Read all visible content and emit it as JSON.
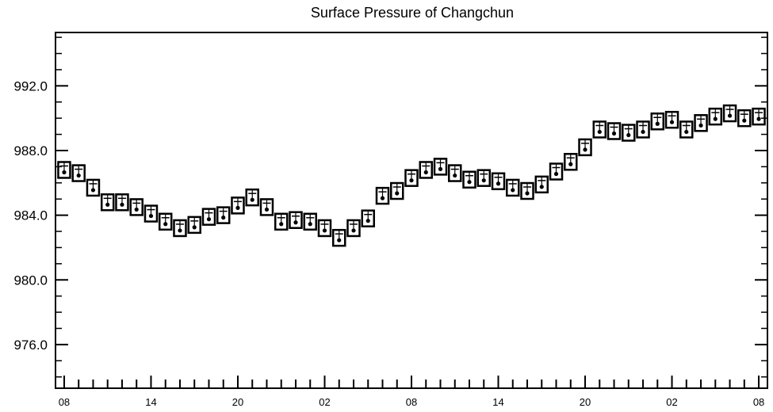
{
  "chart_data": {
    "type": "scatter",
    "title": "Surface Pressure of Changchun",
    "xlabel": "",
    "ylabel": "",
    "ylim": [
      973.3,
      995.3
    ],
    "y_ticks": [
      "976.0",
      "980.0",
      "984.0",
      "988.0",
      "992.0"
    ],
    "y_tick_values": [
      976,
      980,
      984,
      988,
      992
    ],
    "x_tick_labels": [
      "08",
      "14",
      "20",
      "02",
      "08",
      "14",
      "20",
      "02",
      "08"
    ],
    "x_tick_positions": [
      0,
      6,
      12,
      18,
      24,
      30,
      36,
      42,
      48
    ],
    "x_range": [
      -0.6,
      48.6
    ],
    "grid": false,
    "marker": "boxed station symbol",
    "marker_color": "#000000",
    "series": [
      {
        "name": "",
        "x": [
          0,
          1,
          2,
          3,
          4,
          5,
          6,
          7,
          8,
          9,
          10,
          11,
          12,
          13,
          14,
          15,
          16,
          17,
          18,
          19,
          20,
          21,
          22,
          23,
          24,
          25,
          26,
          27,
          28,
          29,
          30,
          31,
          32,
          33,
          34,
          35,
          36,
          37,
          38,
          39,
          40,
          41,
          42,
          43,
          44,
          45,
          46,
          47,
          48
        ],
        "values": [
          986.8,
          986.6,
          985.7,
          984.8,
          984.8,
          984.5,
          984.1,
          983.6,
          983.2,
          983.4,
          983.9,
          984.0,
          984.6,
          985.1,
          984.5,
          983.6,
          983.7,
          983.6,
          983.2,
          982.6,
          983.2,
          983.8,
          985.2,
          985.5,
          986.3,
          986.8,
          987.0,
          986.6,
          986.2,
          986.3,
          986.1,
          985.7,
          985.5,
          985.9,
          986.7,
          987.3,
          988.2,
          989.3,
          989.2,
          989.1,
          989.3,
          989.8,
          989.9,
          989.3,
          989.7,
          990.1,
          990.3,
          990.0,
          990.1
        ]
      }
    ]
  }
}
